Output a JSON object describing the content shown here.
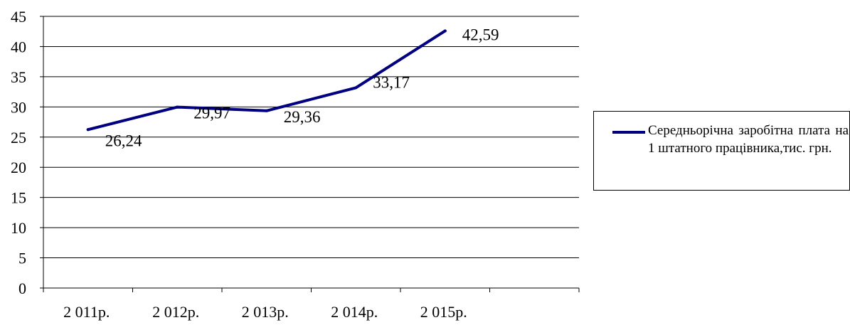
{
  "chart_data": {
    "type": "line",
    "title": "",
    "xlabel": "",
    "ylabel": "",
    "categories": [
      "2 011р.",
      "2 012р.",
      "2 013р.",
      "2 014р.",
      "2 015р."
    ],
    "series": [
      {
        "name": "Середньорічна заробітна плата на 1 штатного працівника,тис. грн.",
        "values": [
          26.24,
          29.97,
          29.36,
          33.17,
          42.59
        ],
        "labels": [
          "26,24",
          "29,97",
          "29,36",
          "33,17",
          "42,59"
        ],
        "color": "#000080"
      }
    ],
    "ylim": [
      0,
      45
    ],
    "yticks": [
      "0",
      "5",
      "10",
      "15",
      "20",
      "25",
      "30",
      "35",
      "40",
      "45"
    ],
    "grid": "horizontal",
    "legend_position": "right"
  }
}
